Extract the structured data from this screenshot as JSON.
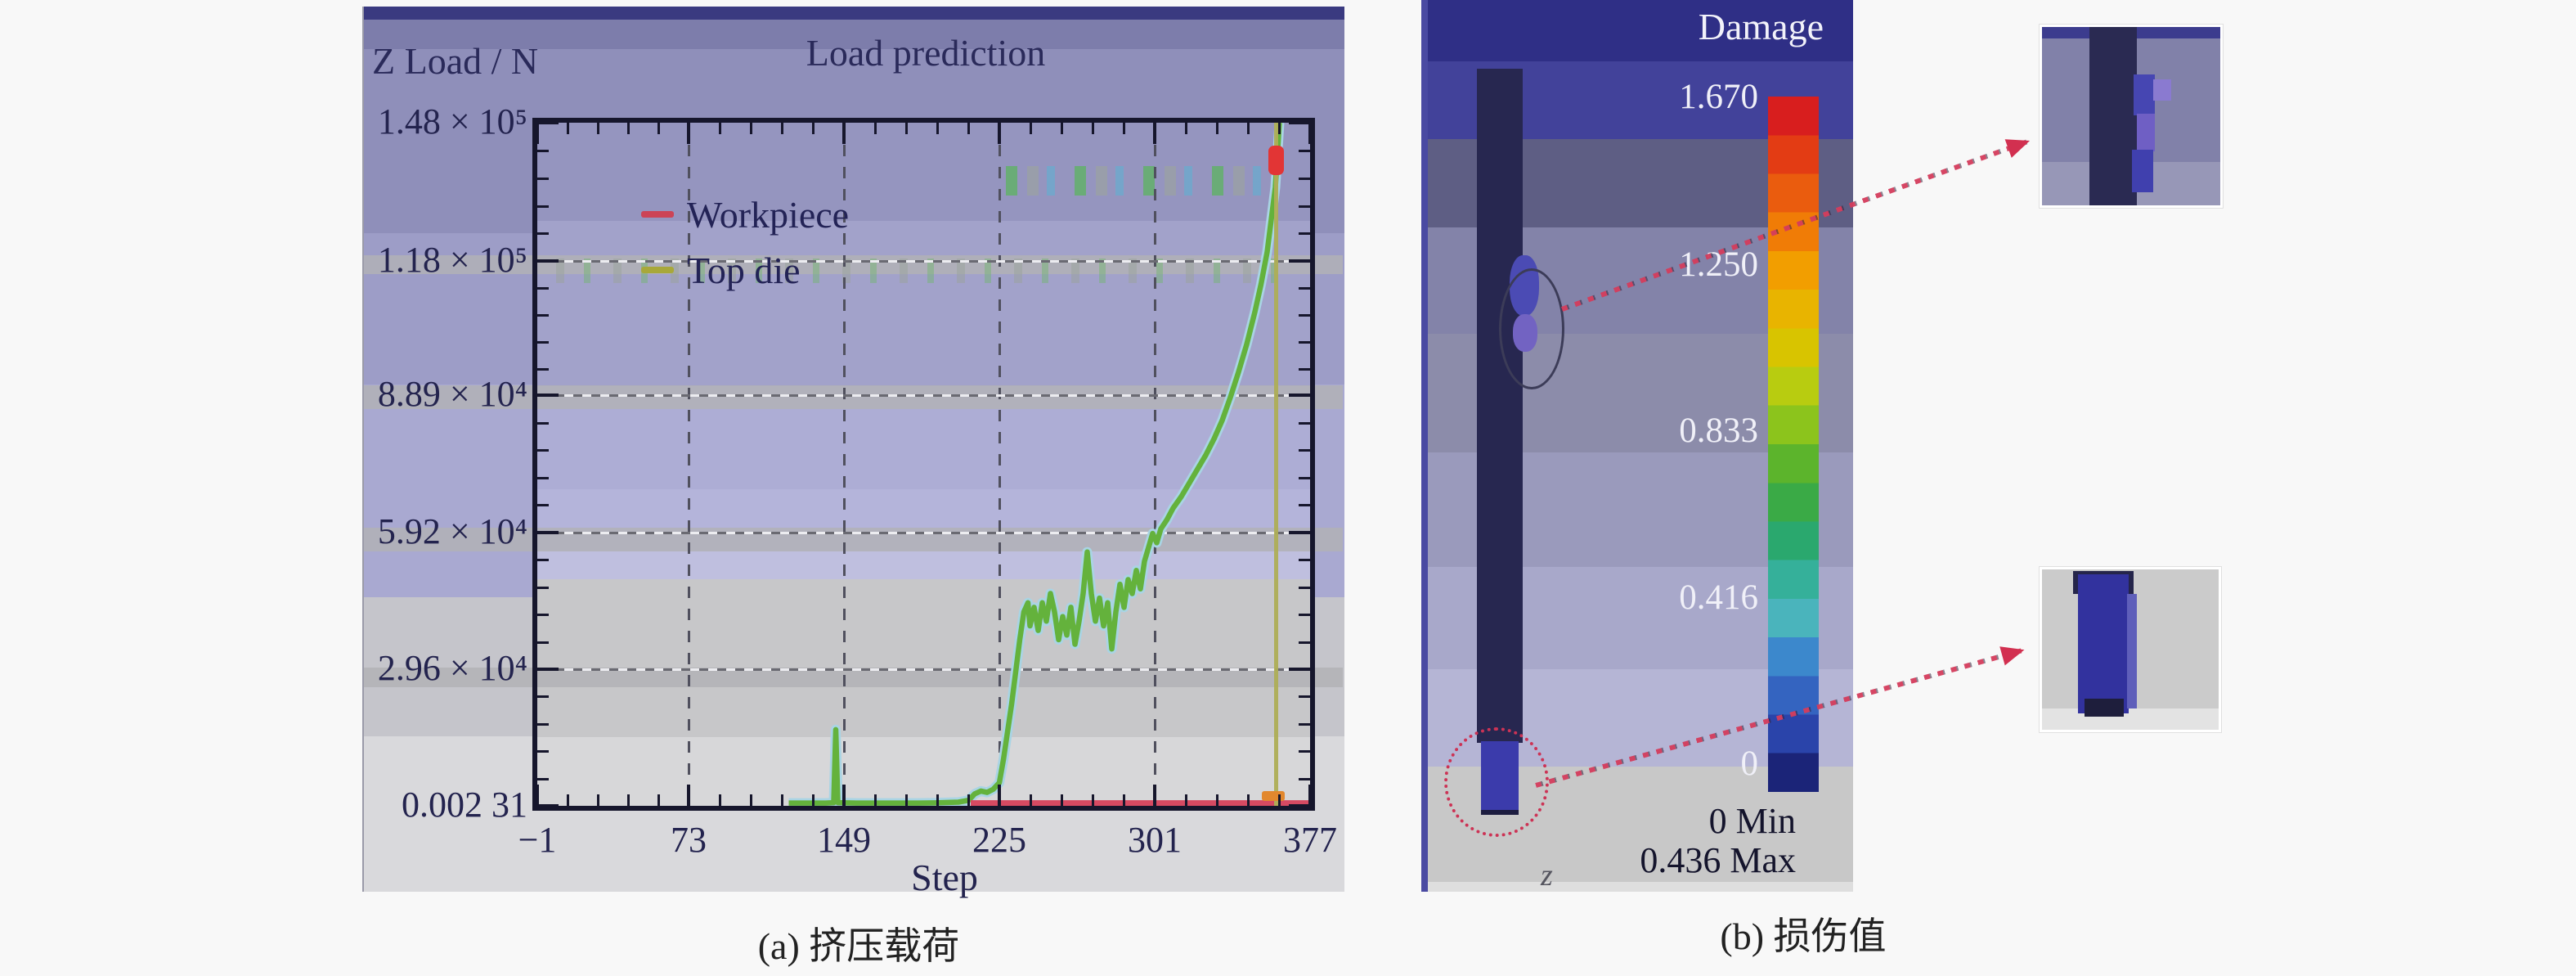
{
  "figure": {
    "background": "#f8f8f8",
    "panel_a": {
      "caption": "(a) 挤压载荷",
      "chart_title": "Load prediction",
      "y_axis_title": "Z Load / N",
      "x_axis_title": "Step",
      "legend": [
        {
          "label": "Workpiece",
          "color": "#cc4456"
        },
        {
          "label": "Top die",
          "color": "#a8a83a"
        }
      ]
    },
    "panel_b": {
      "caption": "(b) 损伤值",
      "colorbar_title": "Damage",
      "tick_labels": [
        "1.670",
        "1.250",
        "0.833",
        "0.416",
        "0"
      ],
      "tick_values": [
        1.67,
        1.25,
        0.833,
        0.416,
        0
      ],
      "min_label": "0 Min",
      "max_label": "0.436 Max",
      "axis_glyph": "z",
      "colorbar_colors": [
        "#d81e1e",
        "#e33c14",
        "#ea5c0e",
        "#f07c06",
        "#f29e00",
        "#e8b400",
        "#d8c400",
        "#b8cc10",
        "#8cc41c",
        "#5cb42c",
        "#3aaa46",
        "#2aa86e",
        "#35b09a",
        "#4ab4bc",
        "#3c88cc",
        "#3464c0",
        "#2a44aa",
        "#1b2478"
      ]
    }
  },
  "chart_data": [
    {
      "type": "line",
      "title": "Load prediction",
      "xlabel": "Step",
      "ylabel": "Z Load / N",
      "xlim": [
        -1,
        377
      ],
      "ylim": [
        0.00231,
        148000
      ],
      "x_ticks": [
        -1,
        73,
        149,
        225,
        301,
        377
      ],
      "x_tick_labels": [
        "−1",
        "73",
        "149",
        "225",
        "301",
        "377"
      ],
      "y_ticks": [
        148000,
        118000,
        88900,
        59200,
        29600,
        0.00231
      ],
      "y_tick_labels": [
        "1.48 × 10⁵",
        "1.18 × 10⁵",
        "8.89 × 10⁴",
        "5.92 × 10⁴",
        "2.96 × 10⁴",
        "0.002 31"
      ],
      "grid": true,
      "legend_position": "upper-left",
      "marker_line_x": 360,
      "series": [
        {
          "name": "Workpiece",
          "color": "#d64a62",
          "points": [
            [
              211,
              600
            ],
            [
              377,
              600
            ]
          ]
        },
        {
          "name": "Top die",
          "color": "#64b23c",
          "points": [
            [
              122,
              600
            ],
            [
              130,
              600
            ],
            [
              140,
              600
            ],
            [
              144,
              700
            ],
            [
              145,
              16500
            ],
            [
              146,
              700
            ],
            [
              155,
              600
            ],
            [
              165,
              600
            ],
            [
              175,
              600
            ],
            [
              185,
              600
            ],
            [
              195,
              650
            ],
            [
              205,
              800
            ],
            [
              210,
              1200
            ],
            [
              213,
              2600
            ],
            [
              216,
              3200
            ],
            [
              219,
              2900
            ],
            [
              222,
              3600
            ],
            [
              225,
              5000
            ],
            [
              227,
              10000
            ],
            [
              229,
              16000
            ],
            [
              231,
              22000
            ],
            [
              233,
              29000
            ],
            [
              235,
              36000
            ],
            [
              237,
              42000
            ],
            [
              239,
              44000
            ],
            [
              240,
              39000
            ],
            [
              242,
              43000
            ],
            [
              244,
              38000
            ],
            [
              246,
              44000
            ],
            [
              248,
              40000
            ],
            [
              250,
              46000
            ],
            [
              252,
              42000
            ],
            [
              254,
              36000
            ],
            [
              256,
              41000
            ],
            [
              258,
              37000
            ],
            [
              260,
              43000
            ],
            [
              262,
              35000
            ],
            [
              264,
              40000
            ],
            [
              266,
              46000
            ],
            [
              268,
              55000
            ],
            [
              270,
              46000
            ],
            [
              272,
              40000
            ],
            [
              274,
              45000
            ],
            [
              276,
              39000
            ],
            [
              278,
              44000
            ],
            [
              280,
              34000
            ],
            [
              282,
              42000
            ],
            [
              284,
              48000
            ],
            [
              286,
              43000
            ],
            [
              288,
              49000
            ],
            [
              290,
              46000
            ],
            [
              292,
              51000
            ],
            [
              294,
              47000
            ],
            [
              296,
              53000
            ],
            [
              298,
              56000
            ],
            [
              300,
              59000
            ],
            [
              302,
              57000
            ],
            [
              304,
              60000
            ],
            [
              307,
              62000
            ],
            [
              310,
              64500
            ],
            [
              314,
              67000
            ],
            [
              318,
              70000
            ],
            [
              322,
              73000
            ],
            [
              326,
              76000
            ],
            [
              330,
              79500
            ],
            [
              334,
              83500
            ],
            [
              338,
              88500
            ],
            [
              342,
              94000
            ],
            [
              346,
              100000
            ],
            [
              350,
              107000
            ],
            [
              353,
              113000
            ],
            [
              356,
              120000
            ],
            [
              358,
              127000
            ],
            [
              360,
              134000
            ],
            [
              361,
              141000
            ],
            [
              362,
              148000
            ]
          ]
        }
      ]
    },
    {
      "type": "heatmap",
      "title": "Damage",
      "colorbar_ticks": [
        1.67,
        1.25,
        0.833,
        0.416,
        0
      ],
      "range": {
        "min": 0,
        "max": 0.436
      },
      "min_label": "0 Min",
      "max_label": "0.436 Max"
    }
  ]
}
